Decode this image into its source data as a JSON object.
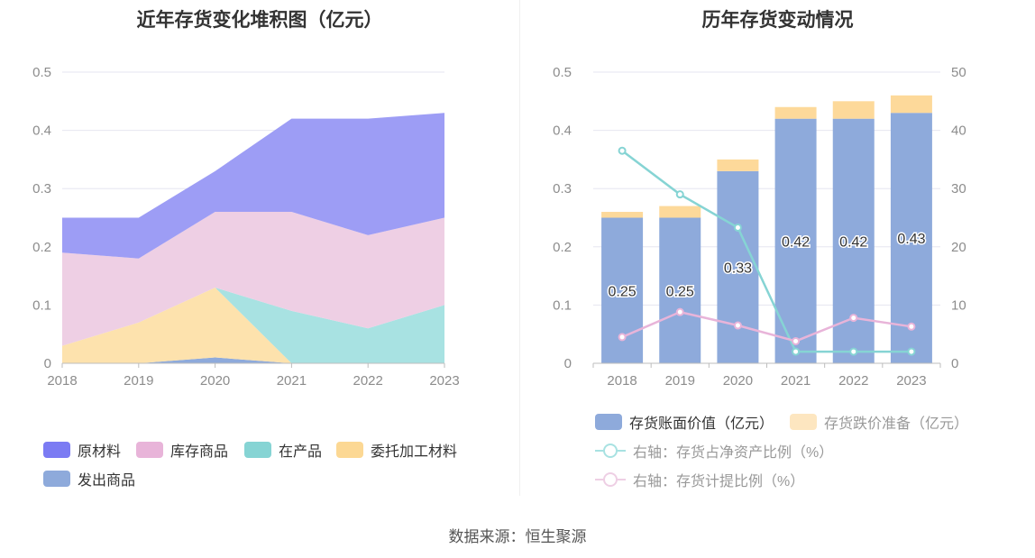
{
  "left": {
    "title": "近年存货变化堆积图（亿元）",
    "legend": [
      {
        "label": "原材料",
        "color": "#7b7bf3"
      },
      {
        "label": "库存商品",
        "color": "#e8b4d9"
      },
      {
        "label": "在产品",
        "color": "#86d4d4"
      },
      {
        "label": "委托加工材料",
        "color": "#fcd894"
      },
      {
        "label": "发出商品",
        "color": "#8eaadb"
      }
    ]
  },
  "right": {
    "title": "历年存货变动情况",
    "legend": {
      "bar1": "存货账面价值（亿元）",
      "bar2": "存货跌价准备（亿元）",
      "line1": "右轴：存货占净资产比例（%）",
      "line2": "右轴：存货计提比例（%）"
    }
  },
  "source": "数据来源：恒生聚源",
  "chart_data": [
    {
      "type": "area",
      "stacked": true,
      "title": "近年存货变化堆积图（亿元）",
      "x": [
        "2018",
        "2019",
        "2020",
        "2021",
        "2022",
        "2023"
      ],
      "ylim": [
        0,
        0.5
      ],
      "yticks": [
        "0",
        "0.1",
        "0.2",
        "0.3",
        "0.4",
        "0.5"
      ],
      "series": [
        {
          "name": "发出商品",
          "color": "#8eaadb",
          "values": [
            0,
            0,
            0.01,
            0,
            0,
            0
          ]
        },
        {
          "name": "委托加工材料",
          "color": "#fde2ad",
          "values": [
            0.03,
            0.07,
            0.12,
            0,
            0,
            0
          ]
        },
        {
          "name": "在产品",
          "color": "#a8e2e2",
          "values": [
            0,
            0,
            0,
            0.09,
            0.06,
            0.1
          ]
        },
        {
          "name": "库存商品",
          "color": "#eecfe4",
          "values": [
            0.16,
            0.11,
            0.13,
            0.17,
            0.16,
            0.15
          ]
        },
        {
          "name": "原材料",
          "color": "#9d9df5",
          "values": [
            0.06,
            0.07,
            0.07,
            0.16,
            0.2,
            0.18
          ]
        }
      ],
      "legend_position": "bottom",
      "grid": true
    },
    {
      "type": "bar",
      "title": "历年存货变动情况",
      "categories": [
        "2018",
        "2019",
        "2020",
        "2021",
        "2022",
        "2023"
      ],
      "ylim": [
        0,
        0.5
      ],
      "y2lim": [
        0,
        50
      ],
      "yticks": [
        "0",
        "0.1",
        "0.2",
        "0.3",
        "0.4",
        "0.5"
      ],
      "y2ticks": [
        "0",
        "10",
        "20",
        "30",
        "40",
        "50"
      ],
      "series": [
        {
          "name": "存货账面价值（亿元）",
          "color": "#8eaadb",
          "values": [
            0.25,
            0.25,
            0.33,
            0.42,
            0.42,
            0.43
          ],
          "labels": [
            "0.25",
            "0.25",
            "0.33",
            "0.42",
            "0.42",
            "0.43"
          ]
        },
        {
          "name": "存货跌价准备（亿元）",
          "color": "#fdd99a",
          "values": [
            0.01,
            0.02,
            0.02,
            0.02,
            0.03,
            0.03
          ]
        },
        {
          "name": "右轴：存货占净资产比例（%）",
          "type": "line",
          "axis": "right",
          "color": "#86d4d4",
          "values": [
            36.5,
            29.0,
            23.3,
            2.0,
            2.0,
            2.0
          ]
        },
        {
          "name": "右轴：存货计提比例（%）",
          "type": "line",
          "axis": "right",
          "color": "#e8b4d9",
          "values": [
            4.5,
            8.8,
            6.5,
            3.8,
            7.8,
            6.3
          ]
        }
      ],
      "legend_position": "bottom",
      "grid": true
    }
  ]
}
